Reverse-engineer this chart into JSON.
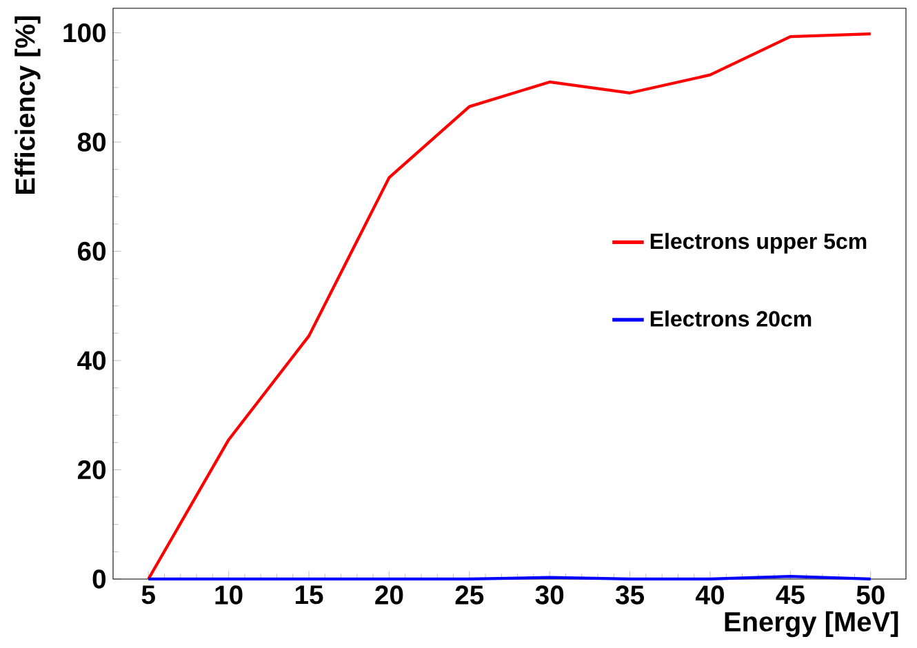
{
  "chart_data": {
    "type": "line",
    "xlabel": "Energy [MeV]",
    "ylabel": "Efficiency [%]",
    "x": [
      5,
      10,
      15,
      20,
      25,
      30,
      35,
      40,
      45,
      50
    ],
    "series": [
      {
        "name": "Electrons upper 5cm",
        "color": "#ff0000",
        "values": [
          0,
          25.5,
          44.5,
          73.5,
          86.5,
          91,
          89,
          92.3,
          99.3,
          99.8
        ]
      },
      {
        "name": "Electrons 20cm",
        "color": "#0000ff",
        "values": [
          0,
          0,
          0,
          0,
          0,
          0.3,
          0,
          0,
          0.5,
          0
        ]
      }
    ],
    "xlim": [
      2.8,
      52.2
    ],
    "ylim": [
      0,
      104.5
    ],
    "xticks": [
      5,
      10,
      15,
      20,
      25,
      30,
      35,
      40,
      45,
      50
    ],
    "yticks": [
      0,
      20,
      40,
      60,
      80,
      100
    ],
    "legend": "right",
    "grid": false,
    "marker": "none",
    "line_style": "solid"
  }
}
